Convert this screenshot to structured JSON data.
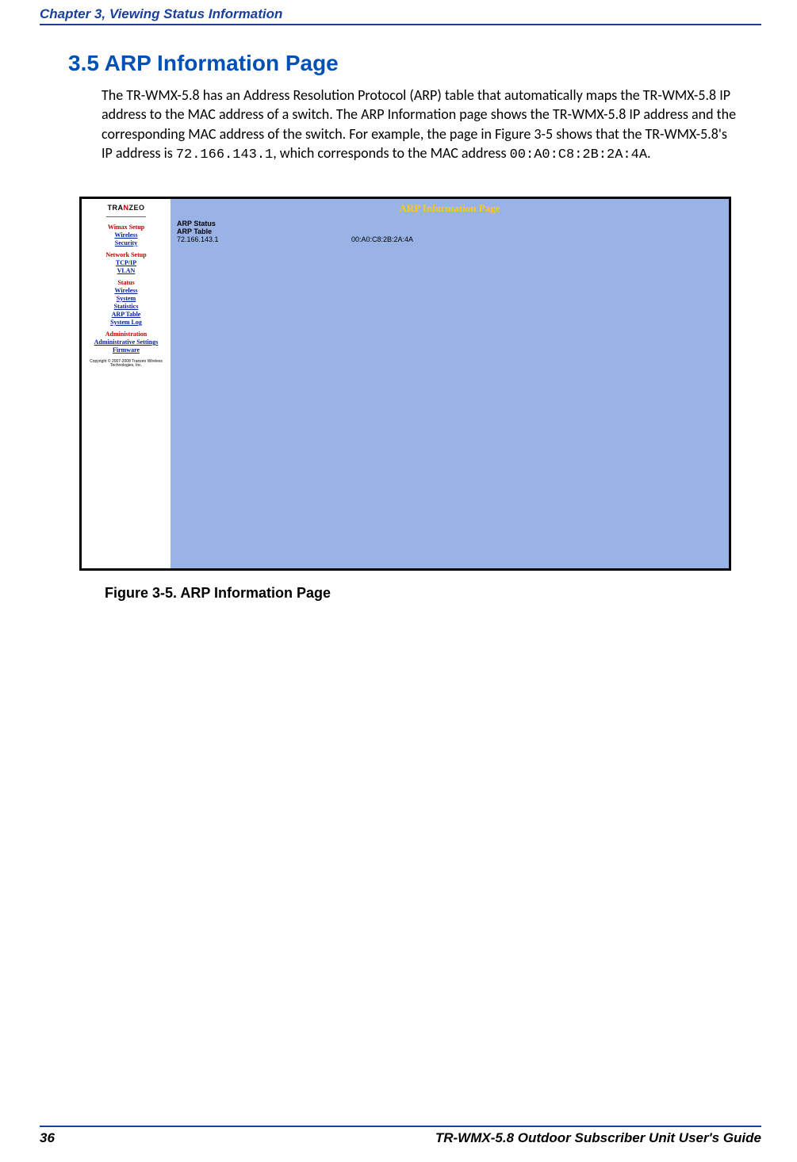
{
  "header": {
    "chapter_line": "Chapter 3, Viewing Status Information"
  },
  "section": {
    "number_title": "3.5 ARP Information Page"
  },
  "body": {
    "p1_a": "The TR-WMX-5.8 has an Address Resolution Protocol (ARP) table that automatically maps the TR-WMX-5.8 IP address to the MAC address of a switch. The ARP Information page shows the TR-WMX-5.8 IP address and the corresponding MAC address of the switch. For example, the page in Figure 3-5 shows that the TR-WMX-5.8's IP address is ",
    "ip_mono": "72.166.143.1",
    "p1_b": ", which corresponds to the MAC address ",
    "mac_mono": "00:A0:C8:2B:2A:4A",
    "p1_c": "."
  },
  "screenshot": {
    "logo_a": "TRA",
    "logo_b": "N",
    "logo_c": "ZEO",
    "nav": {
      "wimax_setup": "Wimax Setup",
      "wireless1": "Wireless",
      "security": "Security",
      "network_setup": "Network Setup",
      "tcpip": "TCP/IP",
      "vlan": "VLAN",
      "status": "Status",
      "wireless2": "Wireless",
      "system": "System",
      "statistics": "Statistics",
      "arp_table": "ARP Table",
      "system_log": "System Log",
      "administration": "Administration",
      "admin_settings": "Administrative Settings",
      "firmware": "Firmware",
      "copyright": "Copyright © 2007-2008 Tranzeo Wireless Technologies, Inc."
    },
    "pane": {
      "title": "ARP Information Page",
      "status_label": "ARP Status",
      "table_label": "ARP Table",
      "row_ip": "72.166.143.1",
      "row_mac": "00:A0:C8:2B:2A:4A"
    }
  },
  "figure_caption": "Figure 3-5. ARP Information Page",
  "footer": {
    "page_num": "36",
    "doc_title": "TR-WMX-5.8 Outdoor Subscriber Unit User's Guide"
  },
  "colors": {
    "header_blue": "#1a3f9c",
    "title_blue": "#0051b6",
    "nav_red": "#c00000",
    "nav_link_blue": "#001f9b",
    "pane_bg": "#99b3e6",
    "pane_title_yellow": "#ffcc00"
  }
}
